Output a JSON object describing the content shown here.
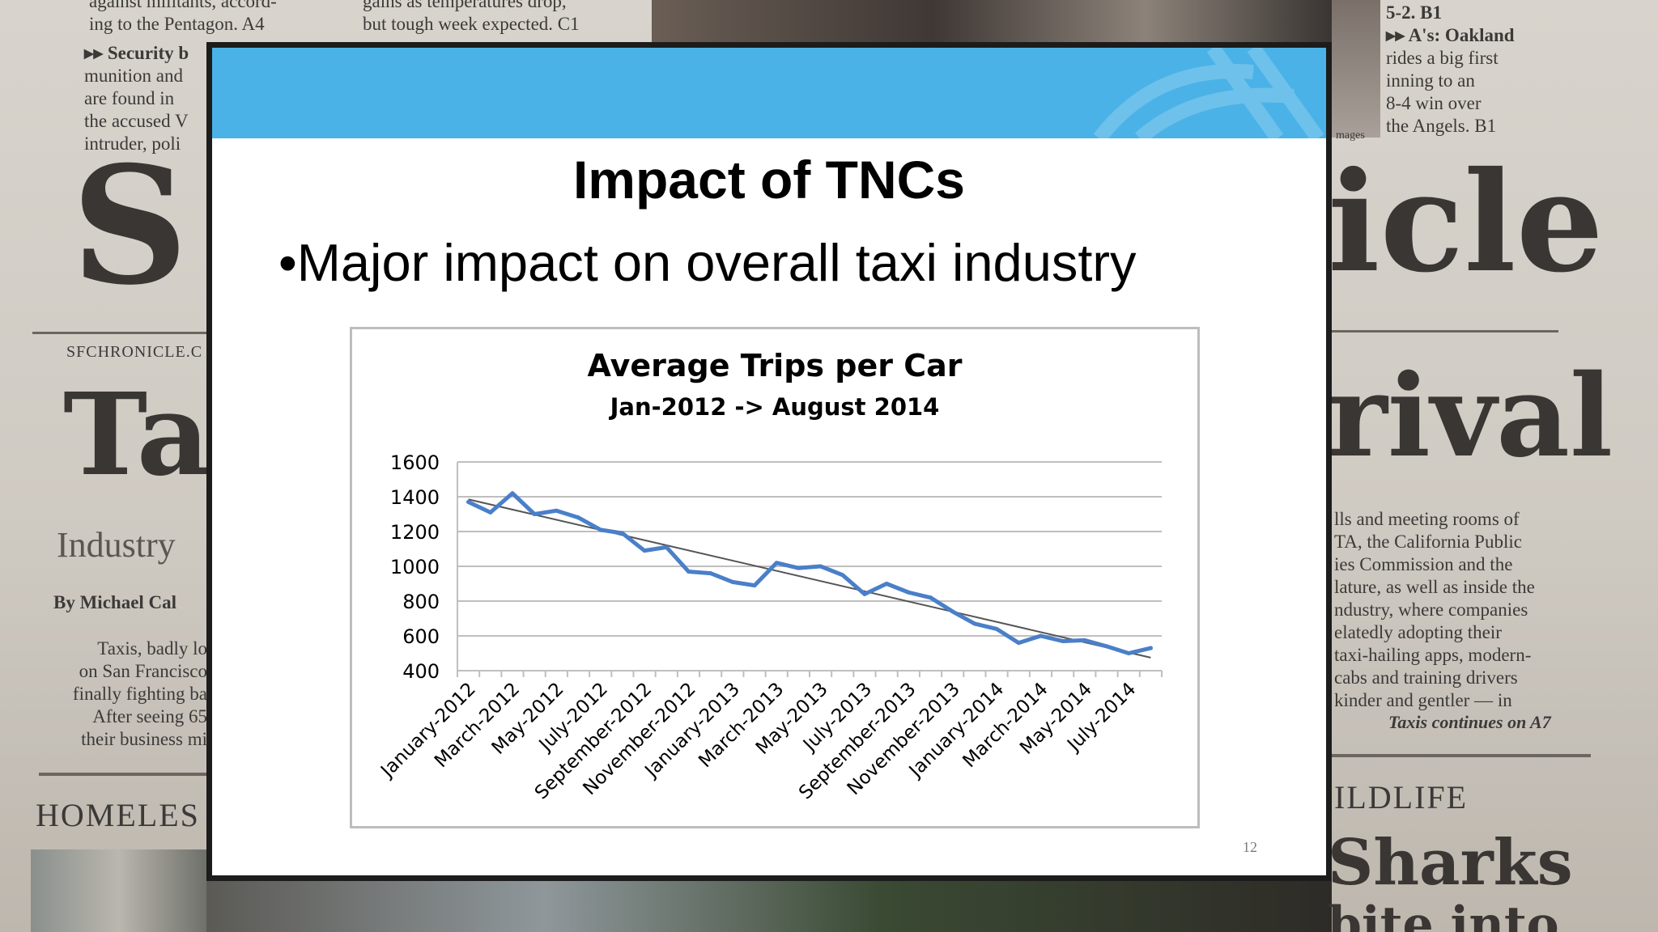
{
  "background": {
    "left_col": {
      "lines_top": [
        "against militants, accord-",
        "ing to the Pentagon. A4"
      ],
      "security_lines": [
        "▸▸ Security b",
        "munition and",
        "are found in",
        "the accused V",
        "intruder, poli"
      ],
      "masthead_fragment": "S",
      "site": "SFCHRONICLE.C",
      "headline_fragment": "Ta",
      "deck_fragment": "Industry",
      "byline": "By Michael Cal",
      "body_lines": [
        "Taxis, badly lo",
        "on San Francisco",
        "finally fighting ba",
        "After seeing 65",
        "their business mi"
      ],
      "section": "HOMELES"
    },
    "mid_col": {
      "lines_top": [
        "gains as temperatures drop,",
        "but tough week expected. C1"
      ]
    },
    "right_col": {
      "lines_top": [
        "5-2. B1",
        "▸▸ A's: Oakland",
        "rides a big first",
        "inning to an",
        "8-4 win over",
        "the Angels. B1"
      ],
      "photo_credit": "mages",
      "masthead_fragment": "icle",
      "headline_fragment": "rival",
      "body_lines": [
        "lls and meeting rooms of",
        "TA, the California Public",
        "ies Commission and the",
        "lature, as well as inside the",
        "ndustry, where companies",
        "elatedly adopting their",
        "taxi-hailing apps, modern-",
        "cabs and training drivers",
        "kinder and gentler — in"
      ],
      "jump": "Taxis continues on A7",
      "section": "ILDLIFE",
      "headline2": "Sharks",
      "headline3": "bite into"
    }
  },
  "slide": {
    "title": "Impact of TNCs",
    "bullet": "•Major impact on overall taxi industry",
    "page_number": "12",
    "banner_color": "#4ab2e6"
  },
  "chart_data": {
    "type": "line",
    "title": "Average Trips per Car",
    "subtitle": "Jan-2012 -> August 2014",
    "xlabel": "",
    "ylabel": "",
    "ylim": [
      400,
      1600
    ],
    "yticks": [
      400,
      600,
      800,
      1000,
      1200,
      1400,
      1600
    ],
    "grid": true,
    "legend": "none",
    "x_tick_labels": [
      "January-2012",
      "March-2012",
      "May-2012",
      "July-2012",
      "September-2012",
      "November-2012",
      "January-2013",
      "March-2013",
      "May-2013",
      "July-2013",
      "September-2013",
      "November-2013",
      "January-2014",
      "March-2014",
      "May-2014",
      "July-2014"
    ],
    "categories": [
      "Jan-2012",
      "Feb-2012",
      "Mar-2012",
      "Apr-2012",
      "May-2012",
      "Jun-2012",
      "Jul-2012",
      "Aug-2012",
      "Sep-2012",
      "Oct-2012",
      "Nov-2012",
      "Dec-2012",
      "Jan-2013",
      "Feb-2013",
      "Mar-2013",
      "Apr-2013",
      "May-2013",
      "Jun-2013",
      "Jul-2013",
      "Aug-2013",
      "Sep-2013",
      "Oct-2013",
      "Nov-2013",
      "Dec-2013",
      "Jan-2014",
      "Feb-2014",
      "Mar-2014",
      "Apr-2014",
      "May-2014",
      "Jun-2014",
      "Jul-2014",
      "Aug-2014"
    ],
    "series": [
      {
        "color": "#4a7fc9",
        "values": [
          1370,
          1310,
          1420,
          1300,
          1320,
          1280,
          1210,
          1190,
          1090,
          1110,
          970,
          960,
          910,
          890,
          1020,
          990,
          1000,
          950,
          840,
          900,
          850,
          820,
          740,
          670,
          640,
          560,
          600,
          570,
          575,
          540,
          500,
          530
        ]
      }
    ],
    "trendline": {
      "color": "#555555",
      "start": 1385,
      "end": 475
    }
  }
}
